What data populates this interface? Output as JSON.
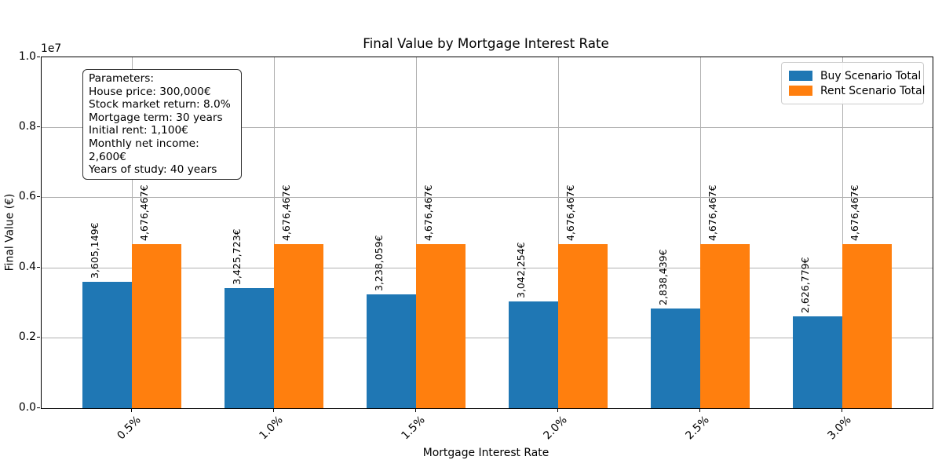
{
  "figure": {
    "title": "Final Value by Mortgage Interest Rate",
    "xlabel": "Mortgage Interest Rate",
    "ylabel": "Final Value (€)",
    "offset_text": "1e7"
  },
  "params_box": {
    "lines": [
      "Parameters:",
      "House price: 300,000€",
      "Stock market return: 8.0%",
      "Mortgage term: 30 years",
      "Initial rent: 1,100€",
      "Monthly net income: 2,600€",
      "Years of study: 40 years"
    ]
  },
  "chart_data": {
    "type": "bar",
    "title": "Final Value by Mortgage Interest Rate",
    "xlabel": "Mortgage Interest Rate",
    "ylabel": "Final Value (€)",
    "categories": [
      "0.5%",
      "1.0%",
      "1.5%",
      "2.0%",
      "2.5%",
      "3.0%"
    ],
    "series": [
      {
        "name": "Buy Scenario Total",
        "color": "#1f77b4",
        "values": [
          3605149,
          3425723,
          3238059,
          3042254,
          2838439,
          2626779
        ],
        "bar_labels": [
          "3,605,149€",
          "3,425,723€",
          "3,238,059€",
          "3,042,254€",
          "2,838,439€",
          "2,626,779€"
        ]
      },
      {
        "name": "Rent Scenario Total",
        "color": "#ff7f0e",
        "values": [
          4676467,
          4676467,
          4676467,
          4676467,
          4676467,
          4676467
        ],
        "bar_labels": [
          "4,676,467€",
          "4,676,467€",
          "4,676,467€",
          "4,676,467€",
          "4,676,467€",
          "4,676,467€"
        ]
      }
    ],
    "ylim": [
      0,
      10000000
    ],
    "yticks": {
      "labels": [
        "0.0",
        "0.2",
        "0.4",
        "0.6",
        "0.8",
        "1.0"
      ],
      "offset": "1e7"
    },
    "grid": true,
    "grid_color": "#b0b0b0",
    "legend_position": "upper right",
    "xtick_rotation": 45,
    "bar_label_rotation": 90
  }
}
